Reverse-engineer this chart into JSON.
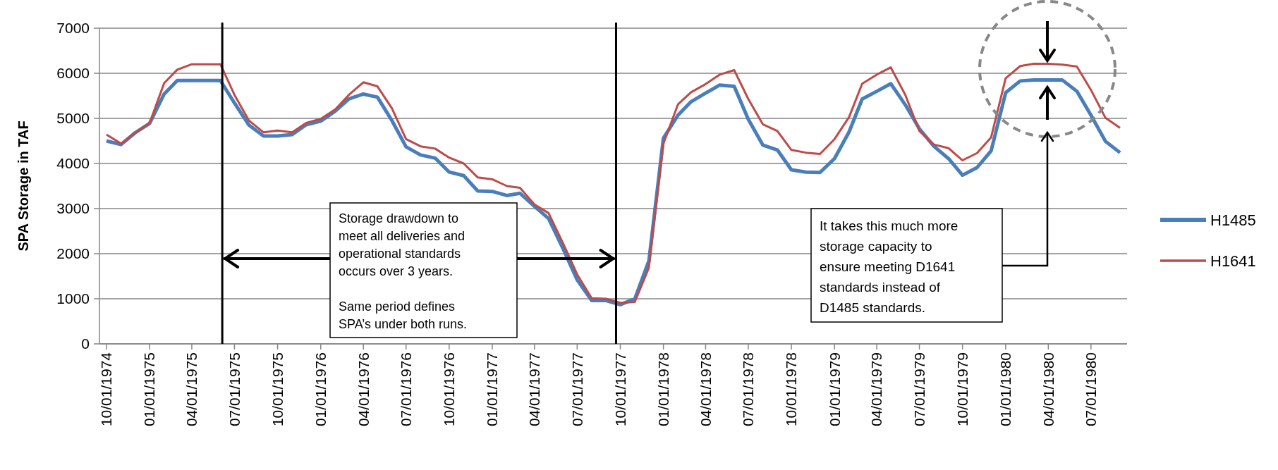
{
  "chart_data": {
    "type": "line",
    "ylabel": "SPA Storage in TAF",
    "x": [
      "1974-10",
      "1974-11",
      "1974-12",
      "1975-01",
      "1975-02",
      "1975-03",
      "1975-04",
      "1975-05",
      "1975-06",
      "1975-07",
      "1975-08",
      "1975-09",
      "1975-10",
      "1975-11",
      "1975-12",
      "1976-01",
      "1976-02",
      "1976-03",
      "1976-04",
      "1976-05",
      "1976-06",
      "1976-07",
      "1976-08",
      "1976-09",
      "1976-10",
      "1976-11",
      "1976-12",
      "1977-01",
      "1977-02",
      "1977-03",
      "1977-04",
      "1977-05",
      "1977-06",
      "1977-07",
      "1977-08",
      "1977-09",
      "1977-10",
      "1977-11",
      "1977-12",
      "1978-01",
      "1978-02",
      "1978-03",
      "1978-04",
      "1978-05",
      "1978-06",
      "1978-07",
      "1978-08",
      "1978-09",
      "1978-10",
      "1978-11",
      "1978-12",
      "1979-01",
      "1979-02",
      "1979-03",
      "1979-04",
      "1979-05",
      "1979-06",
      "1979-07",
      "1979-08",
      "1979-09",
      "1979-10",
      "1979-11",
      "1979-12",
      "1980-01",
      "1980-02",
      "1980-03",
      "1980-04",
      "1980-05",
      "1980-06",
      "1980-07",
      "1980-08",
      "1980-09"
    ],
    "series": [
      {
        "name": "H1485",
        "color": "#4a7ebb",
        "values": [
          4500,
          4420,
          4680,
          4890,
          5540,
          5840,
          5840,
          5840,
          5840,
          5340,
          4850,
          4610,
          4610,
          4640,
          4860,
          4940,
          5160,
          5430,
          5540,
          5470,
          4950,
          4370,
          4190,
          4120,
          3810,
          3730,
          3390,
          3380,
          3290,
          3340,
          3050,
          2780,
          2110,
          1420,
          960,
          960,
          870,
          1000,
          1840,
          4560,
          5070,
          5370,
          5560,
          5740,
          5710,
          4980,
          4410,
          4300,
          3860,
          3810,
          3800,
          4110,
          4700,
          5430,
          5600,
          5770,
          5300,
          4770,
          4380,
          4110,
          3740,
          3910,
          4280,
          5570,
          5830,
          5850,
          5850,
          5850,
          5600,
          5070,
          4490,
          4240
        ]
      },
      {
        "name": "H1641",
        "color": "#be4b48",
        "values": [
          4640,
          4440,
          4680,
          4900,
          5780,
          6080,
          6200,
          6200,
          6200,
          5520,
          4950,
          4690,
          4730,
          4690,
          4900,
          4990,
          5200,
          5520,
          5800,
          5710,
          5220,
          4540,
          4380,
          4330,
          4130,
          4000,
          3690,
          3650,
          3500,
          3460,
          3090,
          2900,
          2230,
          1540,
          1010,
          1000,
          910,
          930,
          1690,
          4440,
          5310,
          5580,
          5760,
          5970,
          6070,
          5430,
          4870,
          4720,
          4300,
          4240,
          4210,
          4540,
          5030,
          5770,
          5970,
          6130,
          5520,
          4720,
          4420,
          4340,
          4070,
          4230,
          4580,
          5890,
          6160,
          6210,
          6210,
          6190,
          6150,
          5630,
          5010,
          4790
        ]
      }
    ],
    "xlim": [
      "1974-09-16",
      "1980-09-16"
    ],
    "xticks": [
      {
        "value": "1974-10",
        "label": "10/01/1974"
      },
      {
        "value": "1975-01",
        "label": "01/01/1975"
      },
      {
        "value": "1975-04",
        "label": "04/01/1975"
      },
      {
        "value": "1975-07",
        "label": "07/01/1975"
      },
      {
        "value": "1975-10",
        "label": "10/01/1975"
      },
      {
        "value": "1976-01",
        "label": "01/01/1976"
      },
      {
        "value": "1976-04",
        "label": "04/01/1976"
      },
      {
        "value": "1976-07",
        "label": "07/01/1976"
      },
      {
        "value": "1976-10",
        "label": "10/01/1976"
      },
      {
        "value": "1977-01",
        "label": "01/01/1977"
      },
      {
        "value": "1977-04",
        "label": "04/01/1977"
      },
      {
        "value": "1977-07",
        "label": "07/01/1977"
      },
      {
        "value": "1977-10",
        "label": "10/01/1977"
      },
      {
        "value": "1978-01",
        "label": "01/01/1978"
      },
      {
        "value": "1978-04",
        "label": "04/01/1978"
      },
      {
        "value": "1978-07",
        "label": "07/01/1978"
      },
      {
        "value": "1978-10",
        "label": "10/01/1978"
      },
      {
        "value": "1979-01",
        "label": "01/01/1979"
      },
      {
        "value": "1979-04",
        "label": "04/01/1979"
      },
      {
        "value": "1979-07",
        "label": "07/01/1979"
      },
      {
        "value": "1979-10",
        "label": "10/01/1979"
      },
      {
        "value": "1980-01",
        "label": "01/01/1980"
      },
      {
        "value": "1980-04",
        "label": "04/01/1980"
      },
      {
        "value": "1980-07",
        "label": "07/01/1980"
      }
    ],
    "ylim": [
      0,
      7000
    ],
    "yticks": [
      0,
      1000,
      2000,
      3000,
      4000,
      5000,
      6000,
      7000
    ],
    "grid": "y",
    "legend": "right",
    "ref_lines": [
      {
        "axis": "x",
        "value": "1975-06-05",
        "color": "#000000"
      },
      {
        "axis": "x",
        "value": "1977-09-22",
        "color": "#000000"
      }
    ],
    "annotations": [
      "Storage drawdown to\nmeet all deliveries and\noperational standards\noccurs over 3 years.\n\nSame period defines\nSPA’s under both runs.",
      "It takes this much more\nstorage capacity to\nensure meeting D1641\nstandards instead of\nD1485 standards."
    ]
  }
}
